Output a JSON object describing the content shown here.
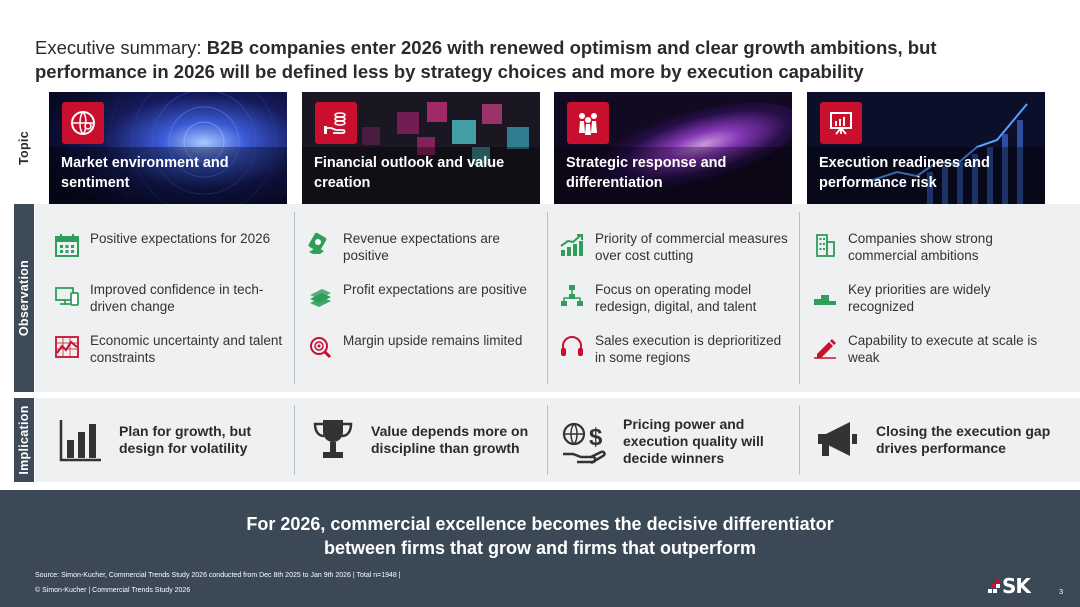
{
  "title": {
    "prefix": "Executive summary: ",
    "emphasis": "B2B companies enter 2026 with renewed optimism and clear growth ambitions, but performance in 2026 will be defined less by strategy choices and more by execution capability"
  },
  "row_labels": {
    "topic": "Topic",
    "observation": "Observation",
    "implication": "Implication"
  },
  "topics": [
    {
      "label": "Market environment and sentiment",
      "icon": "globe-person-icon"
    },
    {
      "label": "Financial outlook and value creation",
      "icon": "hand-coins-icon"
    },
    {
      "label": "Strategic response and differentiation",
      "icon": "chess-pieces-icon"
    },
    {
      "label": "Execution readiness and performance risk",
      "icon": "presentation-chart-icon"
    }
  ],
  "observations": [
    [
      {
        "text": "Positive expectations for 2026",
        "icon": "calendar-icon"
      },
      {
        "text": "Improved confidence in tech-driven change",
        "icon": "devices-icon"
      },
      {
        "text": "Economic uncertainty and talent constraints",
        "icon": "volatile-chart-icon"
      }
    ],
    [
      {
        "text": "Revenue expectations are positive",
        "icon": "money-hand-icon"
      },
      {
        "text": "Profit expectations are positive",
        "icon": "cash-stack-icon"
      },
      {
        "text": "Margin upside remains limited",
        "icon": "target-magnifier-icon"
      }
    ],
    [
      {
        "text": "Priority of commercial measures over cost cutting",
        "icon": "growth-chart-icon"
      },
      {
        "text": "Focus on operating model redesign, digital, and talent",
        "icon": "org-chart-icon"
      },
      {
        "text": "Sales execution is deprioritized in some regions",
        "icon": "headset-icon"
      }
    ],
    [
      {
        "text": "Companies show strong commercial ambitions",
        "icon": "buildings-icon"
      },
      {
        "text": "Key priorities are widely recognized",
        "icon": "podium-icon"
      },
      {
        "text": "Capability to execute at scale is weak",
        "icon": "pen-icon"
      }
    ]
  ],
  "implications": [
    {
      "text": "Plan for growth, but design for volatility",
      "icon": "bar-chart-icon"
    },
    {
      "text": "Value depends more on discipline than growth",
      "icon": "trophy-icon"
    },
    {
      "text": "Pricing power and execution quality will decide winners",
      "icon": "globe-dollar-hand-icon"
    },
    {
      "text": "Closing the execution gap drives performance",
      "icon": "megaphone-icon"
    }
  ],
  "conclusion": {
    "line1": "For 2026, commercial excellence becomes the decisive differentiator",
    "line2": "between firms that grow and firms that outperform"
  },
  "footer": {
    "source": "Source: Simon-Kucher, Commercial Trends Study 2026 conducted from Dec 8th 2025 to Jan 9th 2026 | Total n=1948 |",
    "copyright": "© Simon-Kucher  |  Commercial Trends Study 2026",
    "logo": "SK",
    "page": "3"
  },
  "colors": {
    "accent": "#c8102e",
    "dark": "#3b4856",
    "panel": "#eef0f2",
    "icon_red": "#c8102e",
    "icon_green": "#2e9e5a",
    "icon_dark": "#333333"
  }
}
